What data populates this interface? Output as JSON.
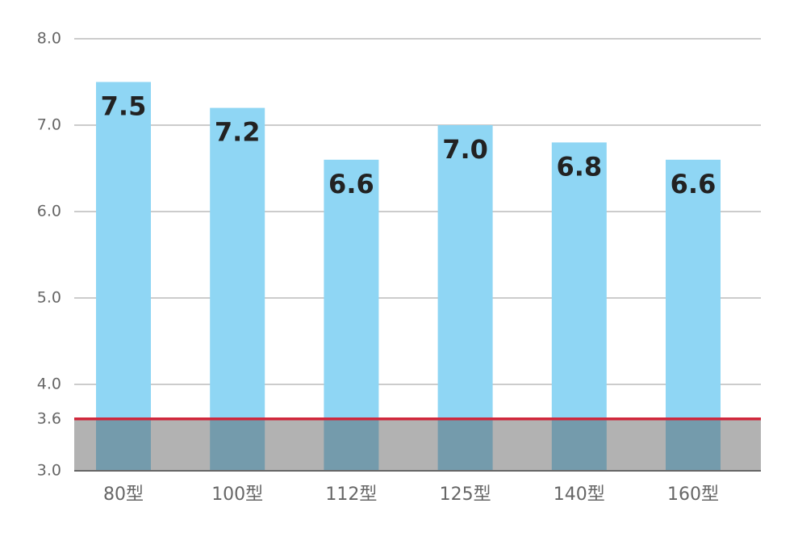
{
  "chart_data": {
    "type": "bar",
    "categories": [
      "80型",
      "100型",
      "112型",
      "125型",
      "140型",
      "160型"
    ],
    "values": [
      7.5,
      7.2,
      6.6,
      7.0,
      6.8,
      6.6
    ],
    "value_labels": [
      "7.5",
      "7.2",
      "6.6",
      "7.0",
      "6.8",
      "6.6"
    ],
    "color": "#8fd6f4",
    "ylim": [
      3,
      8
    ],
    "yticks": [
      {
        "value": 3,
        "label": "3.0"
      },
      3.6,
      {
        "value": 4,
        "label": "4.0"
      },
      {
        "value": 5,
        "label": "5.0"
      },
      {
        "value": 6,
        "label": "6.0"
      },
      {
        "value": 7,
        "label": "7.0"
      },
      {
        "value": 8,
        "label": "8.0"
      }
    ],
    "grid": true,
    "reference_line": {
      "value": 3.6,
      "color": "#d0283c"
    }
  }
}
